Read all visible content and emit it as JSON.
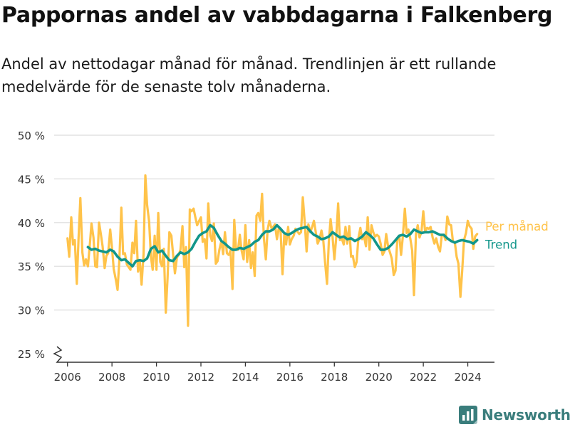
{
  "header": {
    "title": "Pappornas andel av vabbdagarna i Falkenberg",
    "subtitle": "Andel av nettodagar månad för månad. Trendlinjen är ett rullande medelvärde för de senaste tolv månaderna."
  },
  "brand": {
    "name": "Newsworthy",
    "icon": "bar-chart-logo-icon"
  },
  "colors": {
    "monthly": "#ffc34a",
    "trend": "#12968a",
    "grid": "#dcdcdc",
    "axis": "#333333",
    "brand": "#3a7d7c"
  },
  "chart_data": {
    "type": "line",
    "title": "Pappornas andel av vabbdagarna i Falkenberg",
    "subtitle": "Andel av nettodagar månad för månad. Trendlinjen är ett rullande medelvärde för de senaste tolv månaderna.",
    "xlabel": "",
    "ylabel": "",
    "xlim": [
      2005.4,
      2025.2
    ],
    "ylim": [
      25,
      50
    ],
    "y_broken_at": 25,
    "grid": "horizontal",
    "x_ticks": [
      2006,
      2008,
      2010,
      2012,
      2014,
      2016,
      2018,
      2020,
      2022,
      2024
    ],
    "x_tick_labels": [
      "2006",
      "2008",
      "2010",
      "2012",
      "2014",
      "2016",
      "2018",
      "2020",
      "2022",
      "2024"
    ],
    "y_ticks": [
      25,
      30,
      35,
      40,
      45,
      50
    ],
    "y_tick_labels": [
      "25 %",
      "30 %",
      "35 %",
      "40 %",
      "45 %",
      "50 %"
    ],
    "legend_placement": "right, at line ends",
    "series": [
      {
        "name": "Per månad",
        "color": "#ffc34a",
        "x": [
          2006.0,
          2006.08,
          2006.17,
          2006.25,
          2006.33,
          2006.42,
          2006.5,
          2006.58,
          2006.67,
          2006.75,
          2006.83,
          2006.92,
          2007.0,
          2007.08,
          2007.17,
          2007.25,
          2007.33,
          2007.42,
          2007.5,
          2007.58,
          2007.67,
          2007.75,
          2007.83,
          2007.92,
          2008.0,
          2008.08,
          2008.17,
          2008.25,
          2008.33,
          2008.42,
          2008.5,
          2008.58,
          2008.67,
          2008.75,
          2008.83,
          2008.92,
          2009.0,
          2009.08,
          2009.17,
          2009.25,
          2009.33,
          2009.42,
          2009.5,
          2009.58,
          2009.67,
          2009.75,
          2009.83,
          2009.92,
          2010.0,
          2010.08,
          2010.17,
          2010.25,
          2010.33,
          2010.42,
          2010.5,
          2010.58,
          2010.67,
          2010.75,
          2010.83,
          2010.92,
          2011.0,
          2011.08,
          2011.17,
          2011.25,
          2011.33,
          2011.42,
          2011.5,
          2011.58,
          2011.67,
          2011.75,
          2011.83,
          2011.92,
          2012.0,
          2012.08,
          2012.17,
          2012.25,
          2012.33,
          2012.42,
          2012.5,
          2012.58,
          2012.67,
          2012.75,
          2012.83,
          2012.92,
          2013.0,
          2013.08,
          2013.17,
          2013.25,
          2013.33,
          2013.42,
          2013.5,
          2013.58,
          2013.67,
          2013.75,
          2013.83,
          2013.92,
          2014.0,
          2014.08,
          2014.17,
          2014.25,
          2014.33,
          2014.42,
          2014.5,
          2014.58,
          2014.67,
          2014.75,
          2014.83,
          2014.92,
          2015.0,
          2015.08,
          2015.17,
          2015.25,
          2015.33,
          2015.42,
          2015.5,
          2015.58,
          2015.67,
          2015.75,
          2015.83,
          2015.92,
          2016.0,
          2016.08,
          2016.17,
          2016.25,
          2016.33,
          2016.42,
          2016.5,
          2016.58,
          2016.67,
          2016.75,
          2016.83,
          2016.92,
          2017.0,
          2017.08,
          2017.17,
          2017.25,
          2017.33,
          2017.42,
          2017.5,
          2017.58,
          2017.67,
          2017.75,
          2017.83,
          2017.92,
          2018.0,
          2018.08,
          2018.17,
          2018.25,
          2018.33,
          2018.42,
          2018.5,
          2018.58,
          2018.67,
          2018.75,
          2018.83,
          2018.92,
          2019.0,
          2019.08,
          2019.17,
          2019.25,
          2019.33,
          2019.42,
          2019.5,
          2019.58,
          2019.67,
          2019.75,
          2019.83,
          2019.92,
          2020.0,
          2020.08,
          2020.17,
          2020.25,
          2020.33,
          2020.42,
          2020.5,
          2020.58,
          2020.67,
          2020.75,
          2020.83,
          2020.92,
          2021.0,
          2021.08,
          2021.17,
          2021.25,
          2021.33,
          2021.42,
          2021.5,
          2021.58,
          2021.67,
          2021.75,
          2021.83,
          2021.92,
          2022.0,
          2022.08,
          2022.17,
          2022.25,
          2022.33,
          2022.42,
          2022.5,
          2022.58,
          2022.67,
          2022.75,
          2022.83,
          2022.92,
          2023.0,
          2023.08,
          2023.17,
          2023.25,
          2023.33,
          2023.42,
          2023.5,
          2023.58,
          2023.67,
          2023.75,
          2023.83,
          2023.92,
          2024.0,
          2024.08,
          2024.17,
          2024.25,
          2024.33,
          2024.42
        ],
        "values": [
          38.2,
          36.1,
          40.6,
          37.5,
          38.0,
          33.0,
          38.3,
          42.8,
          36.6,
          35.1,
          35.8,
          35.0,
          37.3,
          39.9,
          38.3,
          35.0,
          34.9,
          40.0,
          38.7,
          37.3,
          34.8,
          36.2,
          36.5,
          39.2,
          37.1,
          34.7,
          33.5,
          32.3,
          35.7,
          41.7,
          36.4,
          36.5,
          35.2,
          34.9,
          34.6,
          37.7,
          36.5,
          40.2,
          34.4,
          35.7,
          32.9,
          36.4,
          45.4,
          42.0,
          40.1,
          36.1,
          34.6,
          38.5,
          34.6,
          41.1,
          35.5,
          35.0,
          37.0,
          29.7,
          33.7,
          38.9,
          38.5,
          36.3,
          34.2,
          36.0,
          36.3,
          36.9,
          39.6,
          34.9,
          37.2,
          28.2,
          41.5,
          41.3,
          41.6,
          40.6,
          39.7,
          40.2,
          40.6,
          37.8,
          38.1,
          35.9,
          42.2,
          38.5,
          37.9,
          39.9,
          35.3,
          35.6,
          36.9,
          37.9,
          36.4,
          38.9,
          36.5,
          36.3,
          36.8,
          32.4,
          40.3,
          36.9,
          36.9,
          38.6,
          36.8,
          35.8,
          39.7,
          35.5,
          38.0,
          34.8,
          36.6,
          33.9,
          40.8,
          41.1,
          40.2,
          43.3,
          38.3,
          35.8,
          39.2,
          40.2,
          39.4,
          39.5,
          39.8,
          38.1,
          39.3,
          39.3,
          34.1,
          38.7,
          37.5,
          39.5,
          37.5,
          38.1,
          38.5,
          39.3,
          39.0,
          38.7,
          38.9,
          42.9,
          39.9,
          36.7,
          39.8,
          38.9,
          39.5,
          40.2,
          38.8,
          37.6,
          38.1,
          39.1,
          38.0,
          35.5,
          33.0,
          37.8,
          40.4,
          38.3,
          35.8,
          38.2,
          42.2,
          38.0,
          38.2,
          37.5,
          39.5,
          37.6,
          39.6,
          36.1,
          36.2,
          34.9,
          35.5,
          38.2,
          39.4,
          38.1,
          38.5,
          37.3,
          40.6,
          36.9,
          39.7,
          38.9,
          38.4,
          38.6,
          38.4,
          37.6,
          36.3,
          36.7,
          38.7,
          37.2,
          36.6,
          35.9,
          34.0,
          34.5,
          38.0,
          38.5,
          36.3,
          38.4,
          41.6,
          38.8,
          39.2,
          38.1,
          36.8,
          31.7,
          38.7,
          39.7,
          38.3,
          39.0,
          41.3,
          39.0,
          39.4,
          39.3,
          39.5,
          38.3,
          37.6,
          38.2,
          37.2,
          36.7,
          38.5,
          38.6,
          38.0,
          40.7,
          39.8,
          39.7,
          37.9,
          37.7,
          36.1,
          35.3,
          31.5,
          34.5,
          38.0,
          38.8,
          40.2,
          39.6,
          39.3,
          37.0,
          38.4,
          38.7
        ]
      },
      {
        "name": "Trend",
        "color": "#12968a",
        "x": [
          2006.92,
          2007.08,
          2007.25,
          2007.42,
          2007.58,
          2007.75,
          2007.92,
          2008.08,
          2008.25,
          2008.42,
          2008.58,
          2008.75,
          2008.92,
          2009.08,
          2009.25,
          2009.42,
          2009.58,
          2009.75,
          2009.92,
          2010.08,
          2010.25,
          2010.42,
          2010.58,
          2010.75,
          2010.92,
          2011.08,
          2011.25,
          2011.42,
          2011.58,
          2011.75,
          2011.92,
          2012.08,
          2012.25,
          2012.42,
          2012.58,
          2012.75,
          2012.92,
          2013.08,
          2013.25,
          2013.42,
          2013.58,
          2013.75,
          2013.92,
          2014.08,
          2014.25,
          2014.42,
          2014.58,
          2014.75,
          2014.92,
          2015.08,
          2015.25,
          2015.42,
          2015.58,
          2015.75,
          2015.92,
          2016.08,
          2016.25,
          2016.42,
          2016.58,
          2016.75,
          2016.92,
          2017.08,
          2017.25,
          2017.42,
          2017.58,
          2017.75,
          2017.92,
          2018.08,
          2018.25,
          2018.42,
          2018.58,
          2018.75,
          2018.92,
          2019.08,
          2019.25,
          2019.42,
          2019.58,
          2019.75,
          2019.92,
          2020.08,
          2020.25,
          2020.42,
          2020.58,
          2020.75,
          2020.92,
          2021.08,
          2021.25,
          2021.42,
          2021.58,
          2021.75,
          2021.92,
          2022.08,
          2022.25,
          2022.42,
          2022.58,
          2022.75,
          2022.92,
          2023.08,
          2023.25,
          2023.42,
          2023.58,
          2023.75,
          2023.92,
          2024.08,
          2024.25,
          2024.42
        ],
        "values": [
          37.2,
          36.9,
          37.0,
          36.8,
          36.7,
          36.6,
          36.9,
          36.7,
          36.1,
          35.7,
          35.8,
          35.4,
          35.0,
          35.6,
          35.7,
          35.6,
          35.9,
          37.0,
          37.3,
          36.6,
          36.8,
          36.2,
          35.7,
          35.6,
          36.2,
          36.6,
          36.4,
          36.6,
          37.0,
          37.8,
          38.5,
          38.8,
          39.0,
          39.7,
          39.4,
          38.6,
          37.9,
          37.6,
          37.2,
          36.9,
          36.9,
          37.1,
          37.0,
          37.2,
          37.4,
          37.8,
          38.0,
          38.6,
          39.0,
          39.0,
          39.2,
          39.7,
          39.3,
          38.8,
          38.6,
          38.8,
          39.1,
          39.3,
          39.4,
          39.5,
          39.0,
          38.6,
          38.4,
          38.1,
          38.2,
          38.4,
          38.9,
          38.6,
          38.3,
          38.4,
          38.1,
          38.2,
          37.9,
          38.1,
          38.4,
          38.9,
          38.6,
          38.2,
          37.5,
          36.9,
          36.9,
          37.1,
          37.5,
          38.0,
          38.5,
          38.6,
          38.4,
          38.7,
          39.2,
          39.0,
          38.8,
          38.9,
          38.9,
          39.0,
          38.8,
          38.6,
          38.6,
          38.2,
          37.9,
          37.7,
          37.9,
          38.0,
          37.9,
          37.8,
          37.6,
          38.0
        ]
      }
    ]
  }
}
